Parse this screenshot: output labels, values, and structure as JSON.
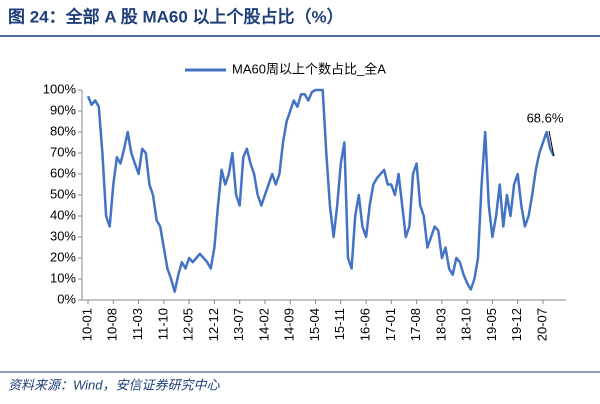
{
  "chart_data": {
    "type": "line",
    "title": "图 24：全部 A 股 MA60 以上个股占比（%）",
    "source": "资料来源：Wind，安信证券研究中心",
    "annotation": "68.6%",
    "categories": [
      "10-01",
      null,
      null,
      null,
      null,
      null,
      null,
      "10-08",
      null,
      null,
      null,
      null,
      null,
      null,
      "11-03",
      null,
      null,
      null,
      null,
      null,
      null,
      "11-10",
      null,
      null,
      null,
      null,
      null,
      null,
      "12-05",
      null,
      null,
      null,
      null,
      null,
      null,
      "12-12",
      null,
      null,
      null,
      null,
      null,
      null,
      "13-07",
      null,
      null,
      null,
      null,
      null,
      null,
      "14-02",
      null,
      null,
      null,
      null,
      null,
      null,
      "14-09",
      null,
      null,
      null,
      null,
      null,
      null,
      "15-04",
      null,
      null,
      null,
      null,
      null,
      null,
      "15-11",
      null,
      null,
      null,
      null,
      null,
      null,
      "16-06",
      null,
      null,
      null,
      null,
      null,
      null,
      "17-01",
      null,
      null,
      null,
      null,
      null,
      null,
      "17-08",
      null,
      null,
      null,
      null,
      null,
      null,
      "18-03",
      null,
      null,
      null,
      null,
      null,
      null,
      "18-10",
      null,
      null,
      null,
      null,
      null,
      null,
      "19-05",
      null,
      null,
      null,
      null,
      null,
      null,
      "19-12",
      null,
      null,
      null,
      null,
      null,
      null,
      "20-07",
      null,
      null,
      null
    ],
    "series": [
      {
        "name": "MA60周以上个数占比_全A",
        "color": "#4472c4",
        "values": [
          97,
          93,
          95,
          92,
          70,
          40,
          35,
          55,
          68,
          65,
          72,
          80,
          70,
          65,
          60,
          72,
          70,
          55,
          50,
          38,
          35,
          25,
          15,
          10,
          4,
          12,
          18,
          15,
          20,
          18,
          20,
          22,
          20,
          18,
          15,
          25,
          45,
          62,
          55,
          60,
          70,
          50,
          45,
          68,
          72,
          65,
          60,
          50,
          45,
          50,
          55,
          60,
          55,
          60,
          75,
          85,
          90,
          95,
          92,
          98,
          98,
          95,
          99,
          100,
          100,
          100,
          70,
          45,
          30,
          45,
          65,
          75,
          20,
          15,
          40,
          50,
          35,
          30,
          45,
          55,
          58,
          60,
          62,
          55,
          55,
          50,
          60,
          45,
          30,
          35,
          60,
          65,
          45,
          40,
          25,
          30,
          35,
          33,
          20,
          25,
          15,
          12,
          20,
          18,
          12,
          8,
          5,
          10,
          20,
          55,
          80,
          45,
          30,
          40,
          55,
          35,
          50,
          40,
          55,
          60,
          45,
          35,
          40,
          50,
          62,
          70,
          75,
          80,
          72,
          68.6
        ]
      }
    ],
    "ylim": [
      0,
      100
    ],
    "yticks": [
      {
        "value": 0,
        "label": "0%"
      },
      {
        "value": 10,
        "label": "10%"
      },
      {
        "value": 20,
        "label": "20%"
      },
      {
        "value": 30,
        "label": "30%"
      },
      {
        "value": 40,
        "label": "40%"
      },
      {
        "value": 50,
        "label": "50%"
      },
      {
        "value": 60,
        "label": "60%"
      },
      {
        "value": 70,
        "label": "70%"
      },
      {
        "value": 80,
        "label": "80%"
      },
      {
        "value": 90,
        "label": "90%"
      },
      {
        "value": 100,
        "label": "100%"
      }
    ],
    "legend": "top"
  }
}
